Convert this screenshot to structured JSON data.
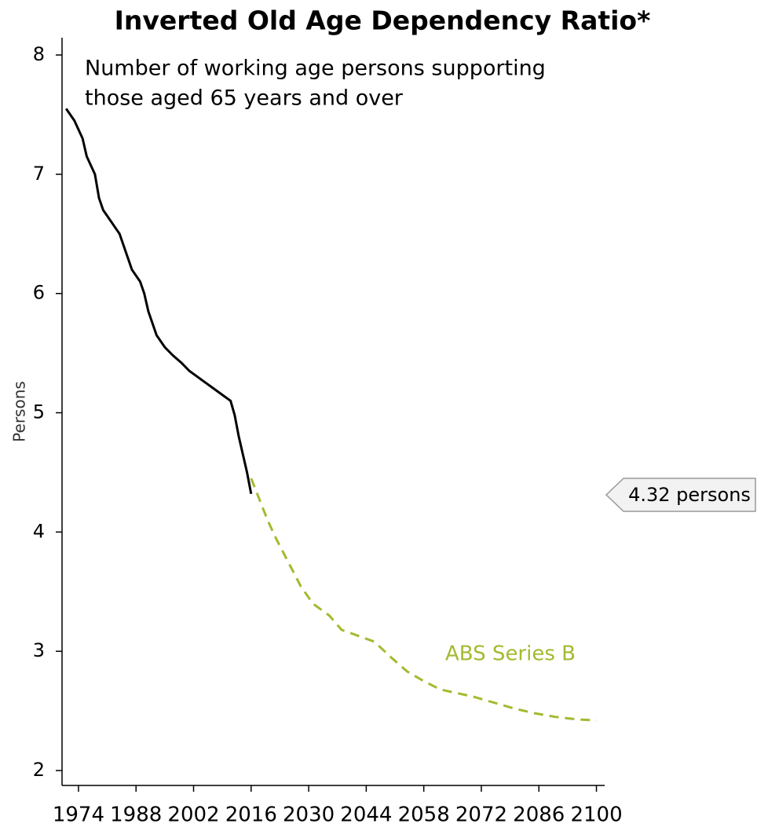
{
  "chart_data": {
    "type": "line",
    "title": "Inverted Old Age Dependency Ratio*",
    "subtitle": [
      "Number of working age persons supporting",
      "those aged 65 years and over"
    ],
    "ylabel": "Persons",
    "callout": "4.32 persons",
    "xlim": [
      1970,
      2102
    ],
    "xticks": [
      1974,
      1988,
      2002,
      2016,
      2030,
      2044,
      2058,
      2072,
      2086,
      2100
    ],
    "ylim": [
      1.875,
      8.145
    ],
    "yticks": [
      2,
      3,
      4,
      5,
      6,
      7,
      8
    ],
    "series": [
      {
        "color": "#000000",
        "dashed": false,
        "x": [
          1971,
          1973,
          1975,
          1976,
          1978,
          1979,
          1980,
          1982,
          1984,
          1985,
          1986,
          1987,
          1989,
          1990,
          1991,
          1992,
          1993,
          1995,
          1997,
          1999,
          2001,
          2003,
          2005,
          2007,
          2009,
          2011,
          2012,
          2013,
          2014,
          2015,
          2016
        ],
        "values": [
          7.55,
          7.45,
          7.3,
          7.15,
          7.0,
          6.8,
          6.7,
          6.6,
          6.5,
          6.4,
          6.3,
          6.2,
          6.1,
          6.0,
          5.85,
          5.75,
          5.65,
          5.55,
          5.48,
          5.42,
          5.35,
          5.3,
          5.25,
          5.2,
          5.15,
          5.1,
          4.98,
          4.8,
          4.65,
          4.5,
          4.32
        ]
      },
      {
        "name": "ABS Series B",
        "color": "#a5b92f",
        "dashed": true,
        "x": [
          2016,
          2020,
          2022,
          2025,
          2028,
          2031,
          2035,
          2038,
          2042,
          2046,
          2050,
          2054,
          2058,
          2062,
          2066,
          2070,
          2075,
          2080,
          2085,
          2090,
          2095,
          2100
        ],
        "values": [
          4.45,
          4.1,
          3.95,
          3.75,
          3.55,
          3.4,
          3.3,
          3.18,
          3.13,
          3.08,
          2.95,
          2.83,
          2.75,
          2.68,
          2.65,
          2.62,
          2.57,
          2.52,
          2.48,
          2.45,
          2.43,
          2.42
        ]
      }
    ]
  }
}
